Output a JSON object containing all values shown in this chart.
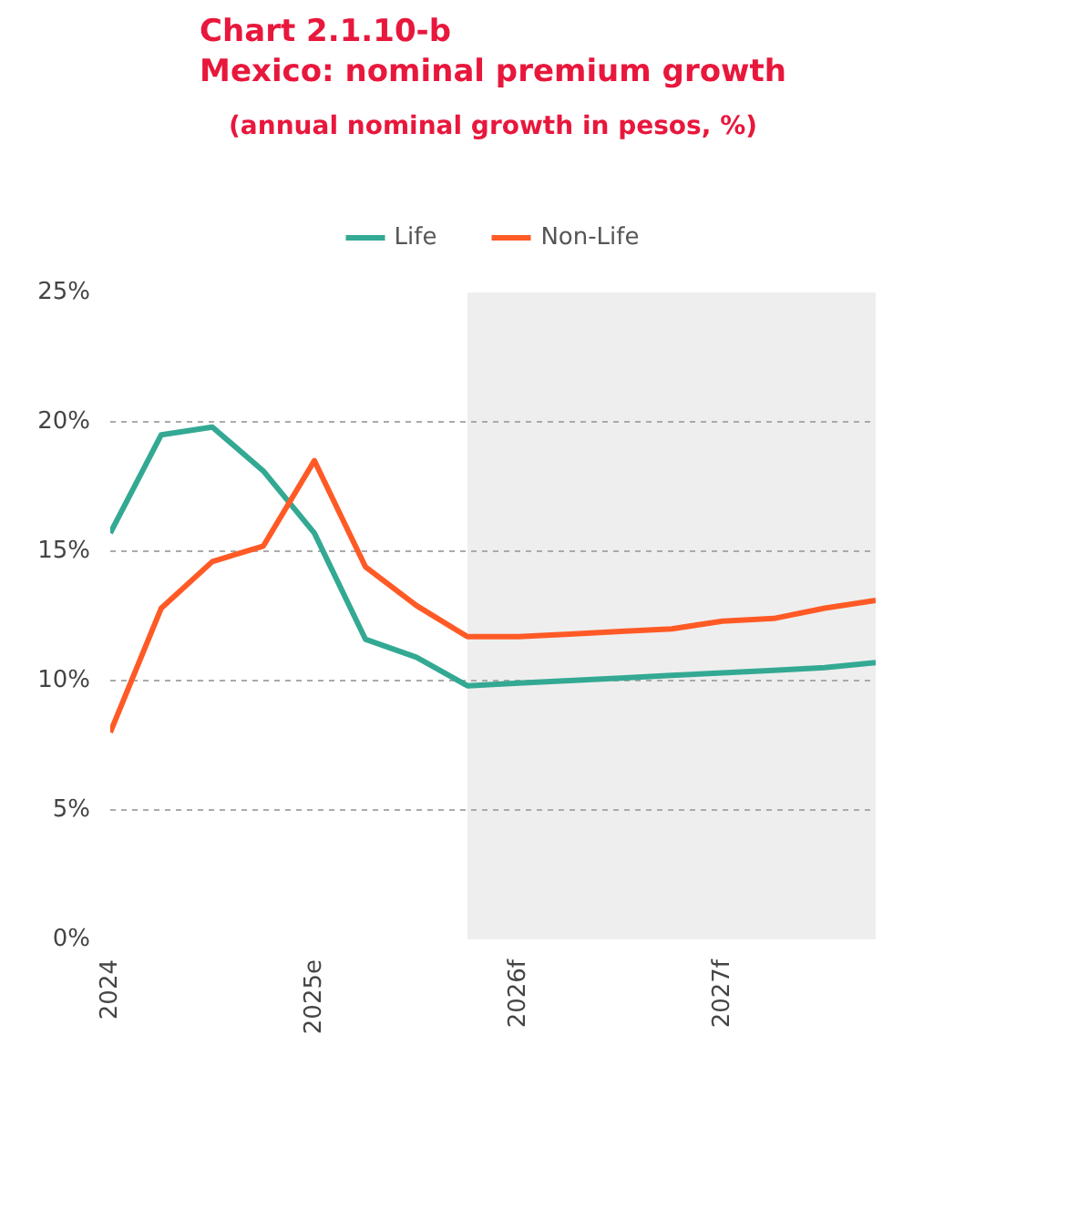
{
  "chart_data": {
    "type": "line",
    "title": "Chart 2.1.10-b\nMexico: nominal premium growth",
    "subtitle": "(annual nominal growth in pesos, %)",
    "x": [
      2024,
      2024.25,
      2024.5,
      2024.75,
      2025,
      2025.25,
      2025.5,
      2025.75,
      2026,
      2026.25,
      2026.5,
      2026.75,
      2027,
      2027.25,
      2027.5,
      2027.75
    ],
    "xlim": [
      2024,
      2027.75
    ],
    "xticks": [
      {
        "value": 2024,
        "label": "2024"
      },
      {
        "value": 2025,
        "label": "2025e"
      },
      {
        "value": 2026,
        "label": "2026f"
      },
      {
        "value": 2027,
        "label": "2027f"
      }
    ],
    "ylim": [
      0,
      25
    ],
    "yticks": [
      {
        "value": 0,
        "label": "0%"
      },
      {
        "value": 5,
        "label": "5%"
      },
      {
        "value": 10,
        "label": "10%"
      },
      {
        "value": 15,
        "label": "15%"
      },
      {
        "value": 20,
        "label": "20%"
      },
      {
        "value": 25,
        "label": "25%"
      }
    ],
    "series": [
      {
        "name": "Life",
        "color": "#33a993",
        "values": [
          15.7,
          19.5,
          19.8,
          18.1,
          15.7,
          11.6,
          10.9,
          9.8,
          9.9,
          10.0,
          10.1,
          10.2,
          10.3,
          10.4,
          10.5,
          10.7
        ]
      },
      {
        "name": "Non-Life",
        "color": "#ff5a26",
        "values": [
          8.0,
          12.8,
          14.6,
          15.2,
          18.5,
          14.4,
          12.9,
          11.7,
          11.7,
          11.8,
          11.9,
          12.0,
          12.3,
          12.4,
          12.8,
          13.1
        ]
      }
    ],
    "bands": [
      {
        "axis": "x",
        "from": 2025.75,
        "to": 2027.75,
        "color": "#eeeeee"
      }
    ],
    "grid": "y",
    "legend": "top",
    "line_style": "solid"
  }
}
